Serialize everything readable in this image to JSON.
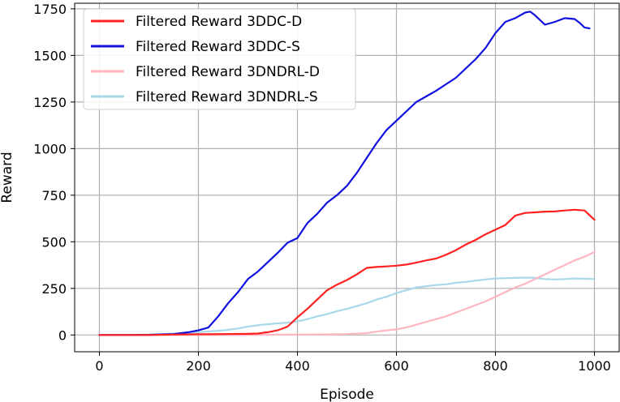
{
  "chart_data": {
    "type": "line",
    "title": "",
    "xlabel": "Episode",
    "ylabel": "Reward",
    "xlim": [
      -50,
      1050
    ],
    "ylim": [
      -90,
      1780
    ],
    "xticks": [
      0,
      200,
      400,
      600,
      800,
      1000
    ],
    "yticks": [
      0,
      250,
      500,
      750,
      1000,
      1250,
      1500,
      1750
    ],
    "grid": true,
    "legend_position": "top-left",
    "series": [
      {
        "name": "Filtered Reward 3DDC-D",
        "color": "#ff2020",
        "line_width": 2.2,
        "x": [
          0,
          50,
          100,
          150,
          200,
          250,
          300,
          320,
          340,
          360,
          380,
          400,
          420,
          440,
          460,
          480,
          500,
          520,
          540,
          560,
          580,
          600,
          620,
          640,
          660,
          680,
          700,
          720,
          740,
          760,
          780,
          800,
          820,
          840,
          860,
          880,
          900,
          920,
          940,
          960,
          980,
          1000
        ],
        "y": [
          0,
          0,
          0,
          2,
          4,
          5,
          6,
          8,
          15,
          25,
          45,
          95,
          140,
          190,
          240,
          270,
          295,
          325,
          360,
          365,
          368,
          372,
          378,
          388,
          400,
          410,
          430,
          455,
          485,
          510,
          540,
          565,
          590,
          640,
          655,
          658,
          662,
          663,
          668,
          672,
          668,
          618
        ]
      },
      {
        "name": "Filtered Reward 3DDC-S",
        "color": "#1010e0",
        "line_width": 2.2,
        "x": [
          0,
          50,
          100,
          150,
          180,
          200,
          220,
          240,
          260,
          280,
          300,
          320,
          340,
          360,
          380,
          400,
          420,
          440,
          460,
          480,
          500,
          520,
          540,
          560,
          580,
          600,
          620,
          640,
          660,
          680,
          700,
          720,
          740,
          760,
          780,
          800,
          820,
          840,
          860,
          870,
          880,
          900,
          920,
          940,
          960,
          970,
          980,
          990
        ],
        "y": [
          0,
          0,
          1,
          5,
          15,
          25,
          40,
          100,
          170,
          230,
          300,
          340,
          390,
          440,
          495,
          520,
          600,
          650,
          710,
          750,
          800,
          870,
          950,
          1030,
          1100,
          1150,
          1200,
          1250,
          1280,
          1310,
          1345,
          1380,
          1430,
          1480,
          1540,
          1620,
          1680,
          1700,
          1730,
          1735,
          1715,
          1665,
          1680,
          1700,
          1695,
          1675,
          1650,
          1645
        ]
      },
      {
        "name": "Filtered Reward 3DNDRL-D",
        "color": "#ffb6c1",
        "line_width": 2.2,
        "x": [
          0,
          100,
          200,
          300,
          400,
          450,
          500,
          540,
          560,
          580,
          600,
          620,
          640,
          660,
          680,
          700,
          720,
          740,
          760,
          780,
          800,
          820,
          840,
          860,
          880,
          900,
          920,
          940,
          960,
          980,
          1000
        ],
        "y": [
          0,
          0,
          0,
          1,
          2,
          3,
          5,
          10,
          18,
          25,
          30,
          40,
          55,
          70,
          85,
          100,
          120,
          140,
          160,
          180,
          205,
          230,
          255,
          275,
          300,
          325,
          350,
          375,
          400,
          420,
          445
        ]
      },
      {
        "name": "Filtered Reward 3DNDRL-S",
        "color": "#a8d8ea",
        "line_width": 2.2,
        "x": [
          0,
          50,
          100,
          150,
          200,
          250,
          280,
          300,
          320,
          340,
          360,
          380,
          400,
          420,
          440,
          460,
          480,
          500,
          520,
          540,
          560,
          580,
          600,
          620,
          640,
          660,
          680,
          700,
          720,
          740,
          760,
          780,
          800,
          820,
          840,
          860,
          880,
          900,
          920,
          940,
          960,
          980,
          1000
        ],
        "y": [
          0,
          0,
          2,
          8,
          15,
          25,
          35,
          45,
          52,
          58,
          62,
          66,
          72,
          85,
          100,
          112,
          128,
          140,
          155,
          170,
          190,
          205,
          225,
          240,
          255,
          262,
          268,
          272,
          280,
          285,
          292,
          298,
          303,
          305,
          306,
          308,
          306,
          300,
          298,
          300,
          303,
          302,
          300
        ]
      }
    ]
  }
}
